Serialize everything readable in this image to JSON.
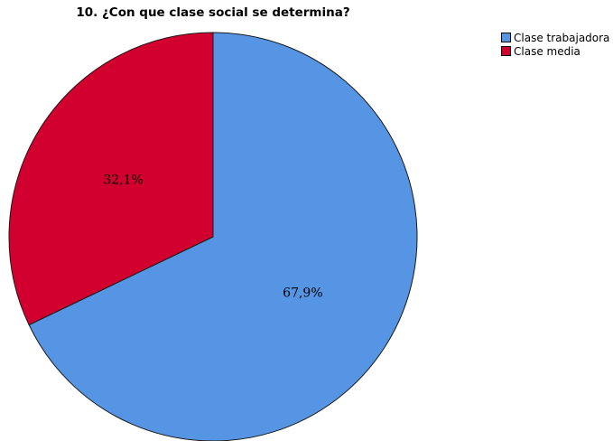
{
  "chart_data": {
    "type": "pie",
    "title": "10. ¿Con que clase social se determina?",
    "slices": [
      {
        "name": "Clase trabajadora",
        "value": 67.9,
        "label": "67,9%",
        "color": "#5595e4"
      },
      {
        "name": "Clase media",
        "value": 32.1,
        "label": "32,1%",
        "color": "#d2002e"
      }
    ],
    "start_angle_deg": 0,
    "direction": "clockwise",
    "legend": "top-right",
    "slice_border_color": "#1a1a1a"
  }
}
